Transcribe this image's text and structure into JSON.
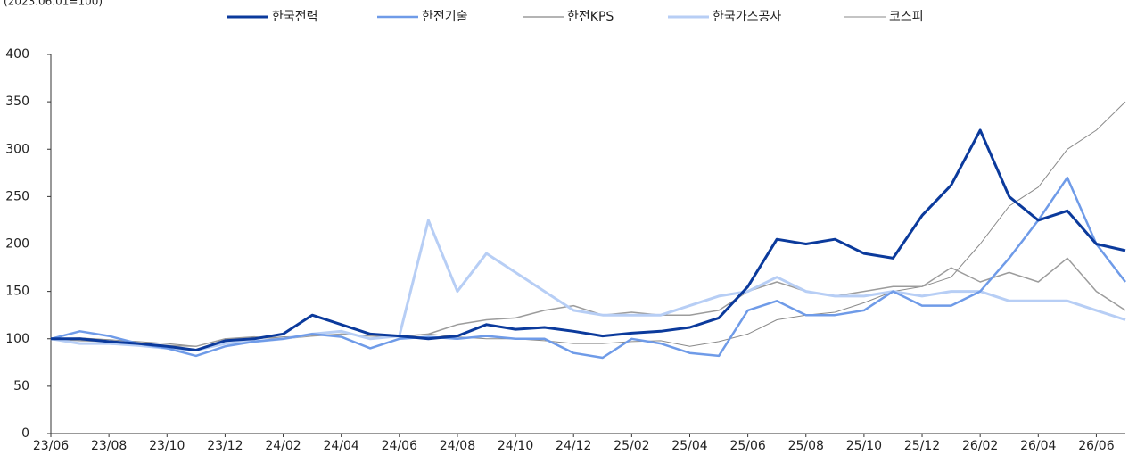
{
  "chart_data": {
    "type": "line",
    "subtitle": "(2023.06.01=100)",
    "categories": [
      "23/06",
      null,
      "23/08",
      null,
      "23/10",
      null,
      "23/12",
      null,
      "24/02",
      null,
      "24/04",
      null,
      "24/06",
      null,
      "24/08",
      null,
      "24/10",
      null,
      "24/12",
      null,
      "25/02",
      null,
      "25/04",
      null,
      "25/06",
      null,
      "25/08",
      null,
      "25/10",
      null,
      "25/12",
      null,
      "26/02",
      null,
      "26/04",
      null,
      "26/06",
      null
    ],
    "ylim": [
      0,
      400
    ],
    "yticks": [
      0,
      50,
      100,
      150,
      200,
      250,
      300,
      350,
      400
    ],
    "legend": "top",
    "series": [
      {
        "name": "한국전력",
        "color": "#0b3a9c",
        "width": 3,
        "values": [
          100,
          100,
          97,
          95,
          92,
          88,
          98,
          100,
          105,
          125,
          115,
          105,
          103,
          100,
          103,
          115,
          110,
          112,
          108,
          103,
          106,
          108,
          112,
          122,
          155,
          205,
          200,
          205,
          190,
          185,
          230,
          262,
          320,
          250,
          225,
          235,
          200,
          193
        ]
      },
      {
        "name": "한전기술",
        "color": "#6f9be8",
        "width": 2.5,
        "values": [
          100,
          108,
          103,
          95,
          90,
          82,
          92,
          97,
          100,
          105,
          102,
          90,
          100,
          102,
          100,
          103,
          100,
          100,
          85,
          80,
          100,
          95,
          85,
          82,
          130,
          140,
          125,
          125,
          130,
          150,
          135,
          135,
          150,
          185,
          225,
          270,
          200,
          160
        ]
      },
      {
        "name": "한전KPS",
        "color": "#9c9c9c",
        "width": 1.5,
        "values": [
          100,
          98,
          97,
          95,
          93,
          92,
          100,
          102,
          100,
          103,
          105,
          103,
          102,
          105,
          115,
          120,
          122,
          130,
          135,
          125,
          128,
          125,
          125,
          130,
          150,
          160,
          150,
          145,
          150,
          155,
          155,
          175,
          160,
          170,
          160,
          185,
          150,
          130
        ]
      },
      {
        "name": "한국가스공사",
        "color": "#b7cef5",
        "width": 3,
        "values": [
          100,
          95,
          95,
          93,
          90,
          88,
          95,
          97,
          100,
          105,
          108,
          100,
          103,
          225,
          150,
          190,
          170,
          150,
          130,
          125,
          125,
          125,
          135,
          145,
          150,
          165,
          150,
          145,
          145,
          150,
          145,
          150,
          150,
          140,
          140,
          140,
          130,
          120
        ]
      },
      {
        "name": "코스피",
        "color": "#8a8a8a",
        "width": 1,
        "values": [
          100,
          101,
          99,
          97,
          95,
          92,
          100,
          100,
          102,
          103,
          105,
          103,
          103,
          105,
          102,
          100,
          100,
          98,
          95,
          95,
          97,
          98,
          92,
          97,
          105,
          120,
          125,
          128,
          138,
          150,
          155,
          165,
          200,
          240,
          260,
          300,
          320,
          350
        ]
      }
    ]
  }
}
